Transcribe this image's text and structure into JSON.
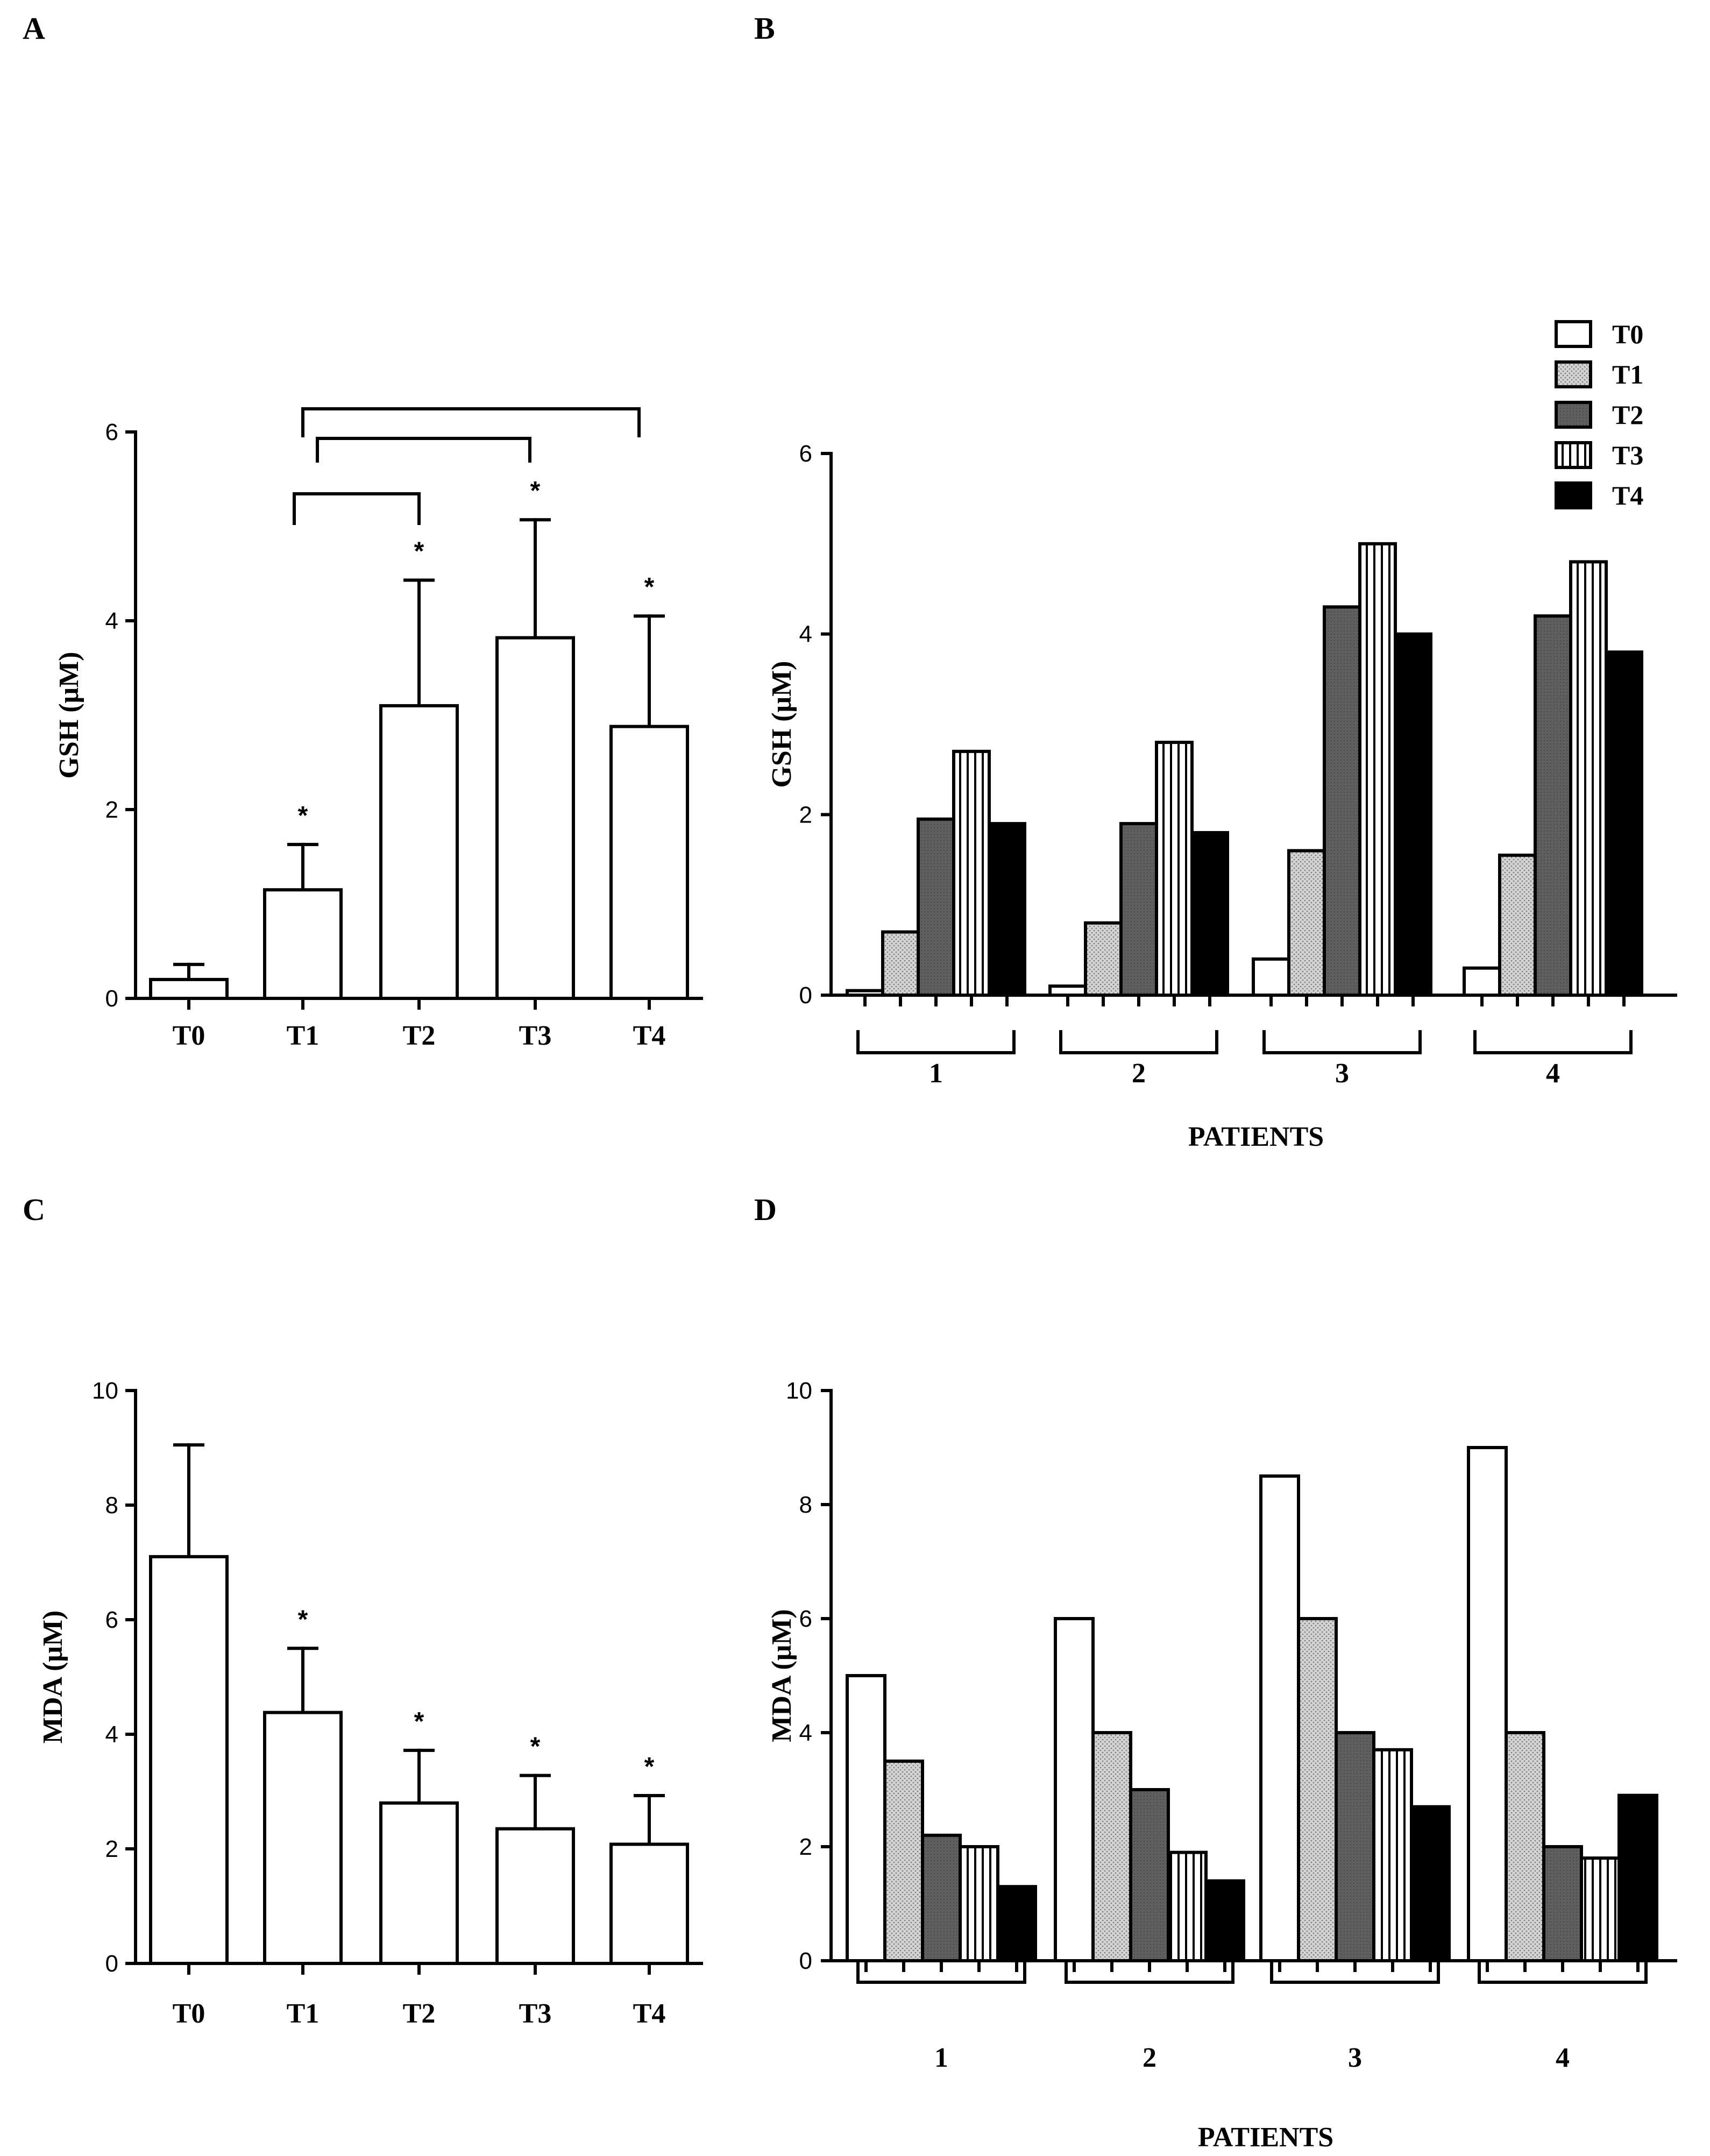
{
  "chart_data": [
    {
      "id": "A",
      "panel_label": "A",
      "type": "bar",
      "ylabel": "GSH (μM)",
      "xlabel": "",
      "ylim": [
        0,
        6
      ],
      "yticks": [
        0,
        2,
        4,
        6
      ],
      "categories": [
        "T0",
        "T1",
        "T2",
        "T3",
        "T4"
      ],
      "values": [
        0.2,
        1.15,
        3.1,
        3.82,
        2.88
      ],
      "errors": [
        0.16,
        0.48,
        1.33,
        1.25,
        1.17
      ],
      "significance": [
        "",
        "*",
        "*",
        "*",
        "*"
      ],
      "brackets": [
        [
          "T1",
          "T2"
        ],
        [
          "T1",
          "T3"
        ],
        [
          "T1",
          "T4"
        ]
      ]
    },
    {
      "id": "B",
      "panel_label": "B",
      "type": "bar",
      "ylabel": "GSH (μM)",
      "xlabel": "PATIENTS",
      "ylim": [
        0,
        6
      ],
      "yticks": [
        0,
        2,
        4,
        6
      ],
      "categories": [
        "1",
        "2",
        "3",
        "4"
      ],
      "legend": [
        "T0",
        "T1",
        "T2",
        "T3",
        "T4"
      ],
      "series": [
        {
          "name": "T0",
          "values": [
            0.05,
            0.1,
            0.4,
            0.3
          ]
        },
        {
          "name": "T1",
          "values": [
            0.7,
            0.8,
            1.6,
            1.55
          ]
        },
        {
          "name": "T2",
          "values": [
            1.95,
            1.9,
            4.3,
            4.2
          ]
        },
        {
          "name": "T3",
          "values": [
            2.7,
            2.8,
            5.0,
            4.8
          ]
        },
        {
          "name": "T4",
          "values": [
            1.9,
            1.8,
            4.0,
            3.8
          ]
        }
      ]
    },
    {
      "id": "C",
      "panel_label": "C",
      "type": "bar",
      "ylabel": "MDA (μM)",
      "xlabel": "",
      "ylim": [
        0,
        10
      ],
      "yticks": [
        0,
        2,
        4,
        6,
        8,
        10
      ],
      "categories": [
        "T0",
        "T1",
        "T2",
        "T3",
        "T4"
      ],
      "values": [
        7.1,
        4.38,
        2.8,
        2.35,
        2.08
      ],
      "errors": [
        1.95,
        1.12,
        0.92,
        0.93,
        0.85
      ],
      "significance": [
        "",
        "*",
        "*",
        "*",
        "*"
      ]
    },
    {
      "id": "D",
      "panel_label": "D",
      "type": "bar",
      "ylabel": "MDA (μM)",
      "xlabel": "PATIENTS",
      "ylim": [
        0,
        10
      ],
      "yticks": [
        0,
        2,
        4,
        6,
        8,
        10
      ],
      "categories": [
        "1",
        "2",
        "3",
        "4"
      ],
      "series": [
        {
          "name": "T0",
          "values": [
            5.0,
            6.0,
            8.5,
            9.0
          ]
        },
        {
          "name": "T1",
          "values": [
            3.5,
            4.0,
            6.0,
            4.0
          ]
        },
        {
          "name": "T2",
          "values": [
            2.2,
            3.0,
            4.0,
            2.0
          ]
        },
        {
          "name": "T3",
          "values": [
            2.0,
            1.9,
            3.7,
            1.8
          ]
        },
        {
          "name": "T4",
          "values": [
            1.3,
            1.4,
            2.7,
            2.9
          ]
        }
      ]
    }
  ]
}
